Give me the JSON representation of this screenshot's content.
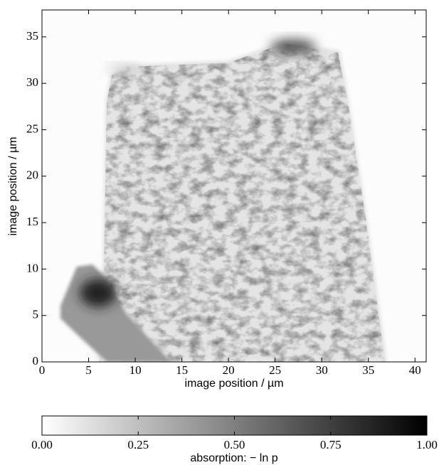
{
  "chart_data": {
    "type": "image",
    "xlabel": "image position / µm",
    "ylabel": "image position / µm",
    "xlim": [
      0,
      41.2
    ],
    "ylim": [
      0,
      37.9
    ],
    "xticks": [
      0,
      5,
      10,
      15,
      20,
      25,
      30,
      35,
      40
    ],
    "yticks": [
      0,
      5,
      10,
      15,
      20,
      25,
      30,
      35
    ],
    "colormap": "gray_r",
    "colorbar": {
      "label": "absorption: − ln p",
      "lim": [
        0,
        1
      ],
      "ticks": [
        {
          "value": 0,
          "label": "0.00"
        },
        {
          "value": 0.25,
          "label": "0.25"
        },
        {
          "value": 0.5,
          "label": "0.50"
        },
        {
          "value": 0.75,
          "label": "0.75"
        },
        {
          "value": 1,
          "label": "1.00"
        }
      ]
    }
  }
}
